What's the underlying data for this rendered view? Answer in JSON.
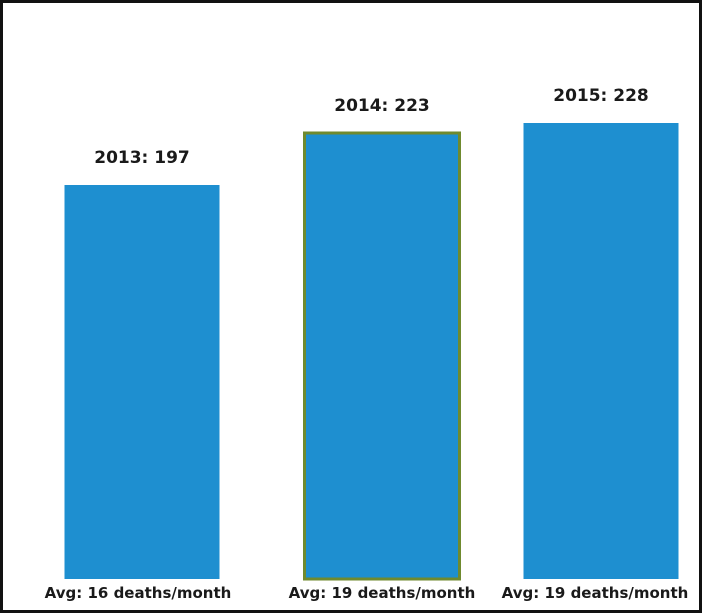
{
  "chart_data": {
    "type": "bar",
    "categories": [
      "2013",
      "2014",
      "2015"
    ],
    "values": [
      197,
      223,
      228
    ],
    "value_labels": [
      "2013: 197",
      "2014: 223",
      "2015: 228"
    ],
    "category_labels": [
      "Avg: 16 deaths/month",
      "Avg: 19 deaths/month",
      "Avg: 19 deaths/month"
    ],
    "highlighted_index": 1,
    "title": "",
    "xlabel": "",
    "ylabel": "",
    "ylim": [
      0,
      245
    ],
    "grid": false,
    "legend": "none",
    "colors": {
      "bar": "#1e8fd0",
      "highlight_outline": "#6f8a2e",
      "text": "#1a1a1a",
      "frame": "#111111"
    }
  }
}
